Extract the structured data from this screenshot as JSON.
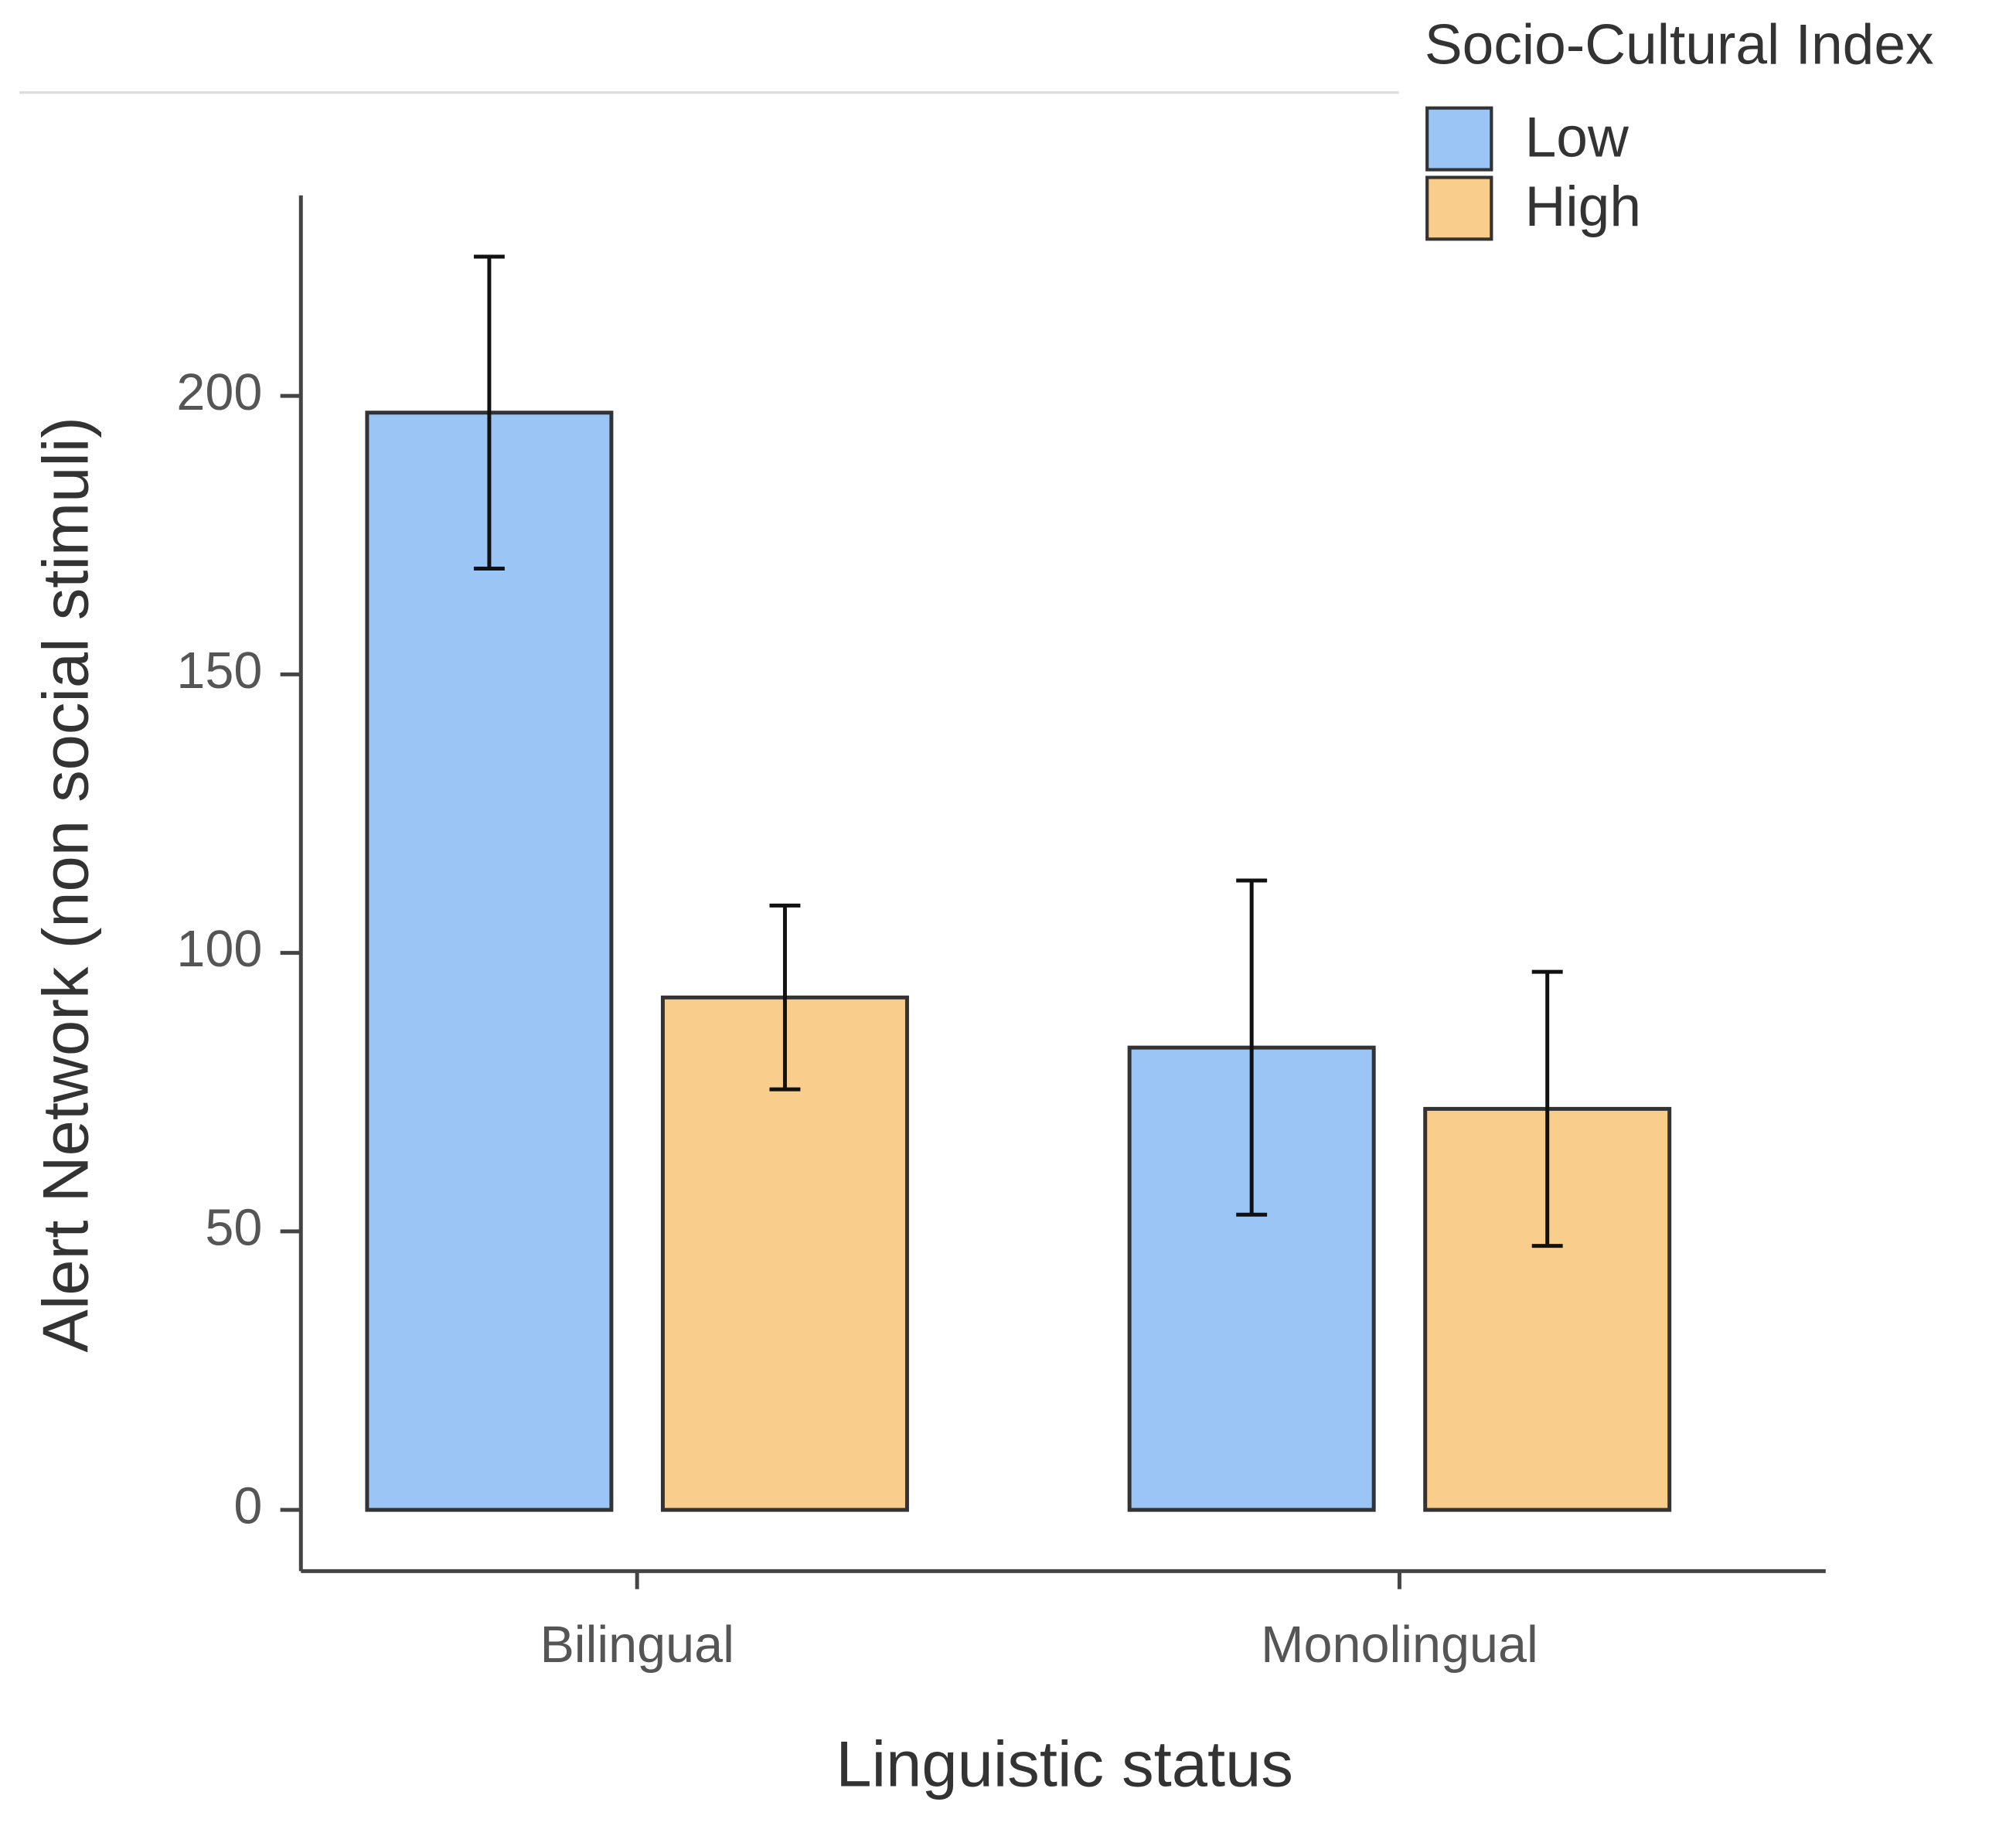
{
  "chart_data": {
    "type": "bar",
    "x_label": "Linguistic status",
    "y_label": "Alert Network (non social stimuli)",
    "categories": [
      "Bilingual",
      "Monolingual"
    ],
    "series": [
      {
        "name": "Low",
        "color": "#9ac5f4",
        "values": [
          197,
          83
        ],
        "errors": [
          28,
          30
        ]
      },
      {
        "name": "High",
        "color": "#f9cd8c",
        "values": [
          92,
          72
        ],
        "errors": [
          16.5,
          24.6
        ]
      }
    ],
    "legend_title": "Socio-Cultural Index",
    "legend_position": "top-right",
    "ylim": [
      -11,
      236
    ],
    "yticks": [
      0,
      50,
      100,
      150,
      200
    ],
    "grid": false
  }
}
